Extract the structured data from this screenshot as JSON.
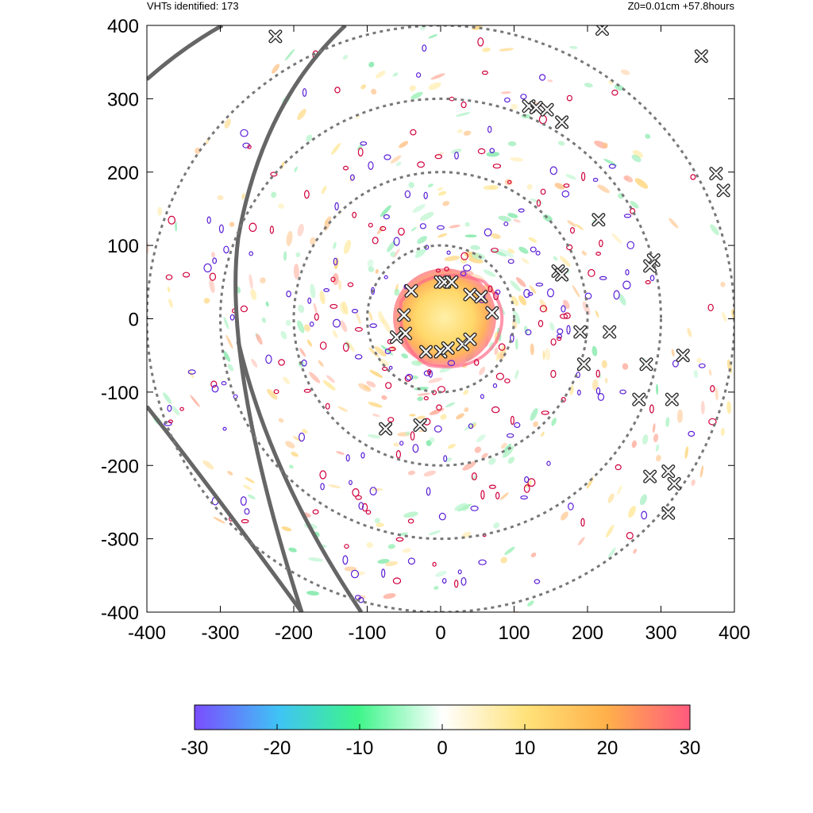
{
  "header": {
    "left": "VHTs identified: 173",
    "right": "Z0=0.01cm  +57.8hours"
  },
  "chart_data": {
    "type": "heatmap",
    "title": "",
    "xlabel": "",
    "ylabel": "",
    "xlim": [
      -400,
      400
    ],
    "ylim": [
      -400,
      400
    ],
    "x_ticks": [
      "-400",
      "-300",
      "-200",
      "-100",
      "0",
      "100",
      "200",
      "300",
      "400"
    ],
    "y_ticks": [
      "400",
      "300",
      "200",
      "100",
      "0",
      "-100",
      "-200",
      "-300",
      "-400"
    ],
    "x_tick_values": [
      -400,
      -300,
      -200,
      -100,
      0,
      100,
      200,
      300,
      400
    ],
    "y_tick_values": [
      400,
      300,
      200,
      100,
      0,
      -100,
      -200,
      -300,
      -400
    ],
    "range_rings_radii": [
      100,
      200,
      300,
      400
    ],
    "vht_count": 173,
    "vht_markers": [
      [
        -225,
        385
      ],
      [
        120,
        290
      ],
      [
        130,
        288
      ],
      [
        145,
        285
      ],
      [
        165,
        268
      ],
      [
        220,
        395
      ],
      [
        355,
        358
      ],
      [
        375,
        198
      ],
      [
        385,
        175
      ],
      [
        215,
        135
      ],
      [
        290,
        80
      ],
      [
        285,
        72
      ],
      [
        160,
        65
      ],
      [
        165,
        60
      ],
      [
        -40,
        38
      ],
      [
        0,
        50
      ],
      [
        5,
        50
      ],
      [
        15,
        50
      ],
      [
        40,
        33
      ],
      [
        55,
        30
      ],
      [
        70,
        8
      ],
      [
        -50,
        5
      ],
      [
        -60,
        -25
      ],
      [
        -48,
        -20
      ],
      [
        -20,
        -45
      ],
      [
        0,
        -45
      ],
      [
        10,
        -40
      ],
      [
        30,
        -35
      ],
      [
        40,
        -28
      ],
      [
        190,
        -18
      ],
      [
        230,
        -18
      ],
      [
        195,
        -62
      ],
      [
        280,
        -62
      ],
      [
        330,
        -50
      ],
      [
        270,
        -110
      ],
      [
        315,
        -110
      ],
      [
        -75,
        -150
      ],
      [
        -28,
        -145
      ],
      [
        285,
        -215
      ],
      [
        310,
        -208
      ],
      [
        318,
        -225
      ],
      [
        310,
        -265
      ]
    ],
    "colorbar": {
      "min": -30,
      "max": 30,
      "ticks": [
        "-30",
        "-20",
        "-10",
        "0",
        "10",
        "20",
        "30"
      ],
      "tick_values": [
        -30,
        -20,
        -10,
        0,
        10,
        20,
        30
      ],
      "colors": [
        "#7a4dff",
        "#3fc3f5",
        "#3ef58a",
        "#ffffff",
        "#ffe27a",
        "#ffb14a",
        "#ff5a7e"
      ]
    }
  }
}
